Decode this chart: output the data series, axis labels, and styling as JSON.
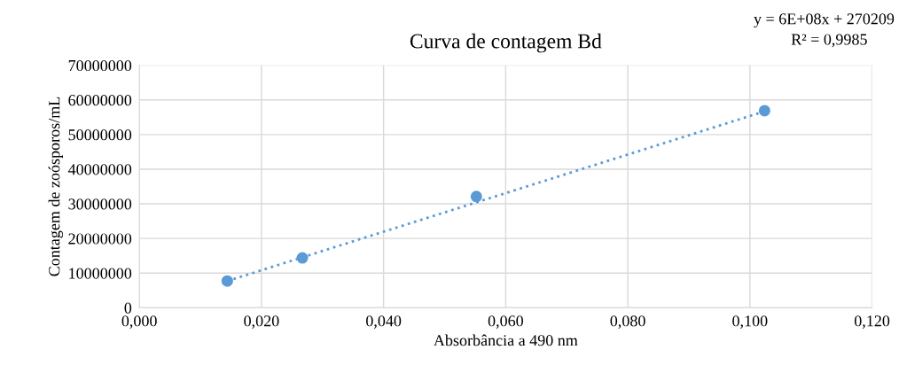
{
  "chart_data": {
    "type": "scatter",
    "title": "Curva de contagem Bd",
    "xlabel": "Absorbância a 490 nm",
    "ylabel": "Contagem de zoósporos/mL",
    "annotations": [
      "y = 6E+08x + 270209",
      "R² = 0,9985"
    ],
    "series": [
      {
        "color": "#5b9bd5",
        "marker": "circle",
        "x": [
          0.0144,
          0.0267,
          0.0552,
          0.1024
        ],
        "values": [
          7700000,
          14400000,
          32100000,
          56900000
        ]
      },
      {
        "type": "line",
        "color": "#5b9bd5",
        "line_style": "dotted",
        "marker": "none",
        "x": [
          0.0144,
          0.1024
        ],
        "values": [
          7700000,
          56700000
        ]
      }
    ],
    "xlim": [
      0,
      0.12
    ],
    "xticks": [
      {
        "value": 0,
        "label": "0,000"
      },
      {
        "value": 0.02,
        "label": "0,020"
      },
      {
        "value": 0.04,
        "label": "0,040"
      },
      {
        "value": 0.06,
        "label": "0,060"
      },
      {
        "value": 0.08,
        "label": "0,080"
      },
      {
        "value": 0.1,
        "label": "0,100"
      },
      {
        "value": 0.12,
        "label": "0,120"
      }
    ],
    "ylim": [
      0,
      70000000
    ],
    "yticks": [
      0,
      10000000,
      20000000,
      30000000,
      40000000,
      50000000,
      60000000,
      70000000
    ],
    "grid": true,
    "legend": false
  }
}
